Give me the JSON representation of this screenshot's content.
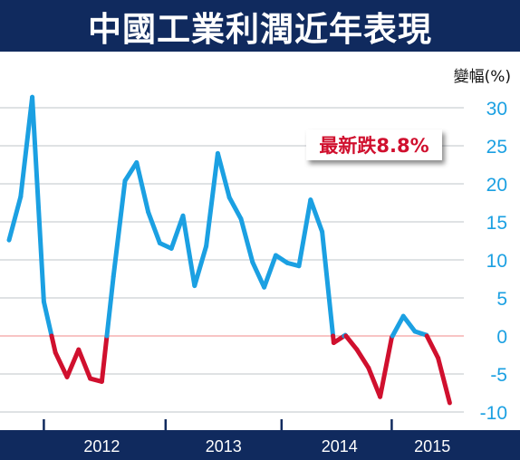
{
  "header": {
    "title": "中國工業利潤近年表現"
  },
  "unit_label": "變幅(%)",
  "annotation": {
    "text": "最新跌8.8%"
  },
  "colors": {
    "header_bg": "#102a5e",
    "positive_line": "#1ba0e2",
    "negative_line": "#d0102e",
    "tick_labels": "#1ba0e2",
    "gridline": "#aab0b8",
    "zero_line": "#f08a8a"
  },
  "chart_data": {
    "type": "line",
    "title": "中國工業利潤近年表現",
    "ylabel": "變幅(%)",
    "ylim": [
      -10,
      30
    ],
    "yticks": [
      30,
      25,
      20,
      15,
      10,
      5,
      0,
      -5,
      -10
    ],
    "year_labels": [
      "2012",
      "2013",
      "2014",
      "2015"
    ],
    "grid": true,
    "series": [
      {
        "values": [
          12.6,
          18.3,
          31.4,
          4.5,
          -2.2,
          -5.4,
          -1.8,
          -5.6,
          -6.0,
          7.8,
          20.4,
          22.8,
          16.3,
          12.2,
          11.5,
          15.8,
          6.6,
          11.8,
          24.0,
          18.2,
          15.4,
          9.7,
          6.4,
          10.6,
          9.6,
          9.2,
          17.9,
          13.7,
          -0.9,
          0.1,
          -1.8,
          -4.2,
          -8.0,
          -0.2,
          2.6,
          0.6,
          0.1,
          -2.9,
          -8.8
        ]
      }
    ]
  }
}
